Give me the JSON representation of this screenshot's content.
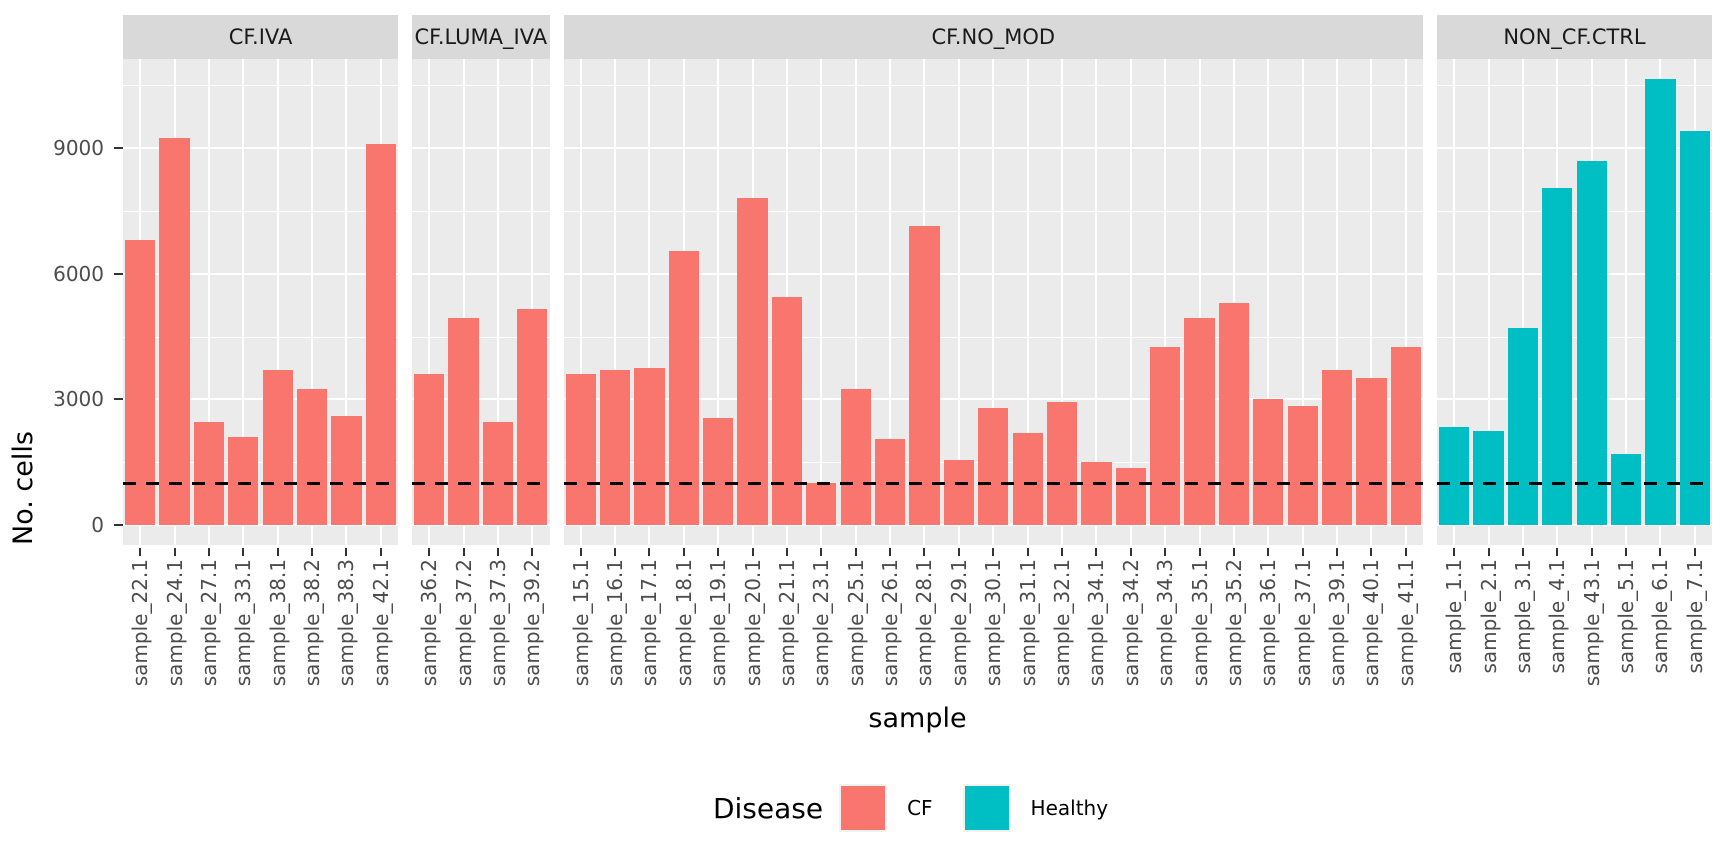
{
  "chart_data": {
    "type": "bar",
    "title": "",
    "ylabel": "No. cells",
    "xlabel": "sample",
    "yticks": [
      0,
      3000,
      6000,
      9000
    ],
    "yticks_minor": [
      1500,
      4500,
      7500,
      10500
    ],
    "ylim": [
      -480,
      11130
    ],
    "grid": "on",
    "hline": {
      "y": 1000,
      "style": "dashed",
      "color": "#000000"
    },
    "legend": {
      "title": "Disease",
      "position": "bottom",
      "entries": [
        {
          "label": "CF",
          "color": "#F8766D"
        },
        {
          "label": "Healthy",
          "color": "#00BFC4"
        }
      ]
    },
    "facets": [
      {
        "label": "CF.IVA",
        "group": "CF",
        "color": "#F8766D",
        "categories": [
          "sample_22.1",
          "sample_24.1",
          "sample_27.1",
          "sample_33.1",
          "sample_38.1",
          "sample_38.2",
          "sample_38.3",
          "sample_42.1"
        ],
        "values": [
          6800,
          9250,
          2450,
          2100,
          3700,
          3250,
          2600,
          9100
        ]
      },
      {
        "label": "CF.LUMA_IVA",
        "group": "CF",
        "color": "#F8766D",
        "categories": [
          "sample_36.2",
          "sample_37.2",
          "sample_37.3",
          "sample_39.2"
        ],
        "values": [
          3600,
          4950,
          2450,
          5150
        ]
      },
      {
        "label": "CF.NO_MOD",
        "group": "CF",
        "color": "#F8766D",
        "categories": [
          "sample_15.1",
          "sample_16.1",
          "sample_17.1",
          "sample_18.1",
          "sample_19.1",
          "sample_20.1",
          "sample_21.1",
          "sample_23.1",
          "sample_25.1",
          "sample_26.1",
          "sample_28.1",
          "sample_29.1",
          "sample_30.1",
          "sample_31.1",
          "sample_32.1",
          "sample_34.1",
          "sample_34.2",
          "sample_34.3",
          "sample_35.1",
          "sample_35.2",
          "sample_36.1",
          "sample_37.1",
          "sample_39.1",
          "sample_40.1",
          "sample_41.1"
        ],
        "values": [
          3600,
          3700,
          3750,
          6550,
          2550,
          7800,
          5450,
          1000,
          3250,
          2050,
          7150,
          1550,
          2800,
          2200,
          2950,
          1500,
          1350,
          4250,
          4950,
          5300,
          3000,
          2850,
          3700,
          3500,
          4250
        ]
      },
      {
        "label": "NON_CF.CTRL",
        "group": "Healthy",
        "color": "#00BFC4",
        "categories": [
          "sample_1.1",
          "sample_2.1",
          "sample_3.1",
          "sample_4.1",
          "sample_43.1",
          "sample_5.1",
          "sample_6.1",
          "sample_7.1"
        ],
        "values": [
          2350,
          2250,
          4700,
          8050,
          8700,
          1700,
          10650,
          9400
        ]
      }
    ]
  },
  "theme": {
    "panel_background": "#EBEBEB",
    "strip_background": "#D9D9D9",
    "gridline_color": "#FFFFFF",
    "tick_color": "#333333",
    "axis_text_color": "#4D4D4D",
    "title_text_color": "#000000"
  }
}
